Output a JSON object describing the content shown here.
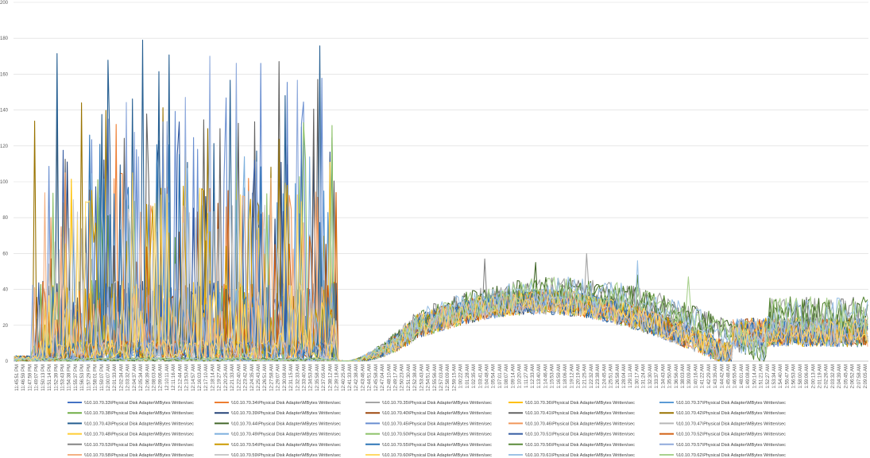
{
  "chart_data": {
    "type": "line",
    "title": "",
    "xlabel": "",
    "ylabel": "",
    "ylim": [
      0,
      200
    ],
    "yticks": [
      0,
      20,
      40,
      60,
      80,
      100,
      120,
      140,
      160,
      180,
      200
    ],
    "grid": "horizontal",
    "legend_position": "bottom",
    "x_tick_labels": [
      "11:45:51 PM",
      "11:46:59 PM",
      "11:47:59 PM",
      "11:49:07 PM",
      "11:50:13 PM",
      "11:51:14 PM",
      "11:52:39 PM",
      "11:53:43 PM",
      "11:54:38 PM",
      "11:55:37 PM",
      "11:56:53 PM",
      "11:57:29 PM",
      "11:58:01 PM",
      "11:59:07 PM",
      "12:00:07 AM",
      "12:01:33 AM",
      "12:02:34 AM",
      "12:03:32 AM",
      "12:04:37 AM",
      "12:05:34 AM",
      "12:06:39 AM",
      "12:08:03 AM",
      "12:09:06 AM",
      "12:10:11 AM",
      "12:11:16 AM",
      "12:12:44 AM",
      "12:13:53 AM",
      "12:14:57 AM",
      "12:16:03 AM",
      "12:17:10 AM",
      "12:18:14 AM",
      "12:19:27 AM",
      "12:20:25 AM",
      "12:21:33 AM",
      "12:22:40 AM",
      "12:23:42 AM",
      "12:24:35 AM",
      "12:25:43 AM",
      "12:26:51 AM",
      "12:27:58 AM",
      "12:29:07 AM",
      "12:30:08 AM",
      "12:31:15 AM",
      "12:32:33 AM",
      "12:33:40 AM",
      "12:34:53 AM",
      "12:35:58 AM",
      "12:37:05 AM",
      "12:38:12 AM",
      "12:39:18 AM",
      "12:40:25 AM",
      "12:41:33 AM",
      "12:42:38 AM",
      "12:43:46 AM",
      "12:44:51 AM",
      "12:45:58 AM",
      "12:47:04 AM",
      "12:48:10 AM",
      "12:49:17 AM",
      "12:50:23 AM",
      "12:51:30 AM",
      "12:52:38 AM",
      "12:53:43 AM",
      "12:54:51 AM",
      "12:55:56 AM",
      "12:57:03 AM",
      "12:58:09 AM",
      "12:59:15 AM",
      "1:00:22 AM",
      "1:01:28 AM",
      "1:02:35 AM",
      "1:03:41 AM",
      "1:04:48 AM",
      "1:05:54 AM",
      "1:07:01 AM",
      "1:08:07 AM",
      "1:09:14 AM",
      "1:10:20 AM",
      "1:11:27 AM",
      "1:12:33 AM",
      "1:13:40 AM",
      "1:14:46 AM",
      "1:15:53 AM",
      "1:16:59 AM",
      "1:18:06 AM",
      "1:19:12 AM",
      "1:20:19 AM",
      "1:21:25 AM",
      "1:22:32 AM",
      "1:23:38 AM",
      "1:24:45 AM",
      "1:25:51 AM",
      "1:26:58 AM",
      "1:28:04 AM",
      "1:29:11 AM",
      "1:30:17 AM",
      "1:31:24 AM",
      "1:32:30 AM",
      "1:33:37 AM",
      "1:34:43 AM",
      "1:35:50 AM",
      "1:36:56 AM",
      "1:38:03 AM",
      "1:39:09 AM",
      "1:40:16 AM",
      "1:41:22 AM",
      "1:42:29 AM",
      "1:43:35 AM",
      "1:44:42 AM",
      "1:45:48 AM",
      "1:46:55 AM",
      "1:48:01 AM",
      "1:49:08 AM",
      "1:50:14 AM",
      "1:51:21 AM",
      "1:52:27 AM",
      "1:53:34 AM",
      "1:54:40 AM",
      "1:55:47 AM",
      "1:56:53 AM",
      "1:58:00 AM",
      "1:59:06 AM",
      "2:00:13 AM",
      "2:01:19 AM",
      "2:02:26 AM",
      "2:03:32 AM",
      "2:04:39 AM",
      "2:05:45 AM",
      "2:06:52 AM",
      "2:07:58 AM",
      "2:09:05 AM"
    ],
    "series": [
      {
        "name": "\\\\10.10.70.33\\Physical Disk Adapter\\MBytes Written/sec",
        "color": "#4472c4",
        "peak": 42,
        "profile": "early_low"
      },
      {
        "name": "\\\\10.10.70.34\\Physical Disk Adapter\\MBytes Written/sec",
        "color": "#ed7d31",
        "peak": 132,
        "profile": "early_high"
      },
      {
        "name": "\\\\10.10.70.35\\Physical Disk Adapter\\MBytes Written/sec",
        "color": "#a5a5a5",
        "peak": 60,
        "profile": "late"
      },
      {
        "name": "\\\\10.10.70.36\\Physical Disk Adapter\\MBytes Written/sec",
        "color": "#ffc000",
        "peak": 103,
        "profile": "early_high"
      },
      {
        "name": "\\\\10.10.70.37\\Physical Disk Adapter\\MBytes Written/sec",
        "color": "#5b9bd5",
        "peak": 99,
        "profile": "early_high"
      },
      {
        "name": "\\\\10.10.70.38\\Physical Disk Adapter\\MBytes Written/sec",
        "color": "#70ad47",
        "peak": 91,
        "profile": "early_high"
      },
      {
        "name": "\\\\10.10.70.39\\Physical Disk Adapter\\MBytes Written/sec",
        "color": "#264478",
        "peak": 123,
        "profile": "early_high"
      },
      {
        "name": "\\\\10.10.70.40\\Physical Disk Adapter\\MBytes Written/sec",
        "color": "#9e480e",
        "peak": 88,
        "profile": "early_high"
      },
      {
        "name": "\\\\10.10.70.41\\Physical Disk Adapter\\MBytes Written/sec",
        "color": "#636363",
        "peak": 167,
        "profile": "early_high"
      },
      {
        "name": "\\\\10.10.70.42\\Physical Disk Adapter\\MBytes Written/sec",
        "color": "#997300",
        "peak": 144,
        "profile": "early_high"
      },
      {
        "name": "\\\\10.10.70.43\\Physical Disk Adapter\\MBytes Written/sec",
        "color": "#255e91",
        "peak": 179,
        "profile": "early_high"
      },
      {
        "name": "\\\\10.10.70.44\\Physical Disk Adapter\\MBytes Written/sec",
        "color": "#43682b",
        "peak": 55,
        "profile": "late"
      },
      {
        "name": "\\\\10.10.70.45\\Physical Disk Adapter\\MBytes Written/sec",
        "color": "#698ed0",
        "peak": 166,
        "profile": "early_high"
      },
      {
        "name": "\\\\10.10.70.46\\Physical Disk Adapter\\MBytes Written/sec",
        "color": "#f1975a",
        "peak": 105,
        "profile": "early_high"
      },
      {
        "name": "\\\\10.10.70.47\\Physical Disk Adapter\\MBytes Written/sec",
        "color": "#b7b7b7",
        "peak": 90,
        "profile": "early_high"
      },
      {
        "name": "\\\\10.10.70.48\\Physical Disk Adapter\\MBytes Written/sec",
        "color": "#ffcd33",
        "peak": 117,
        "profile": "early_high"
      },
      {
        "name": "\\\\10.10.70.49\\Physical Disk Adapter\\MBytes Written/sec",
        "color": "#7cafdd",
        "peak": 114,
        "profile": "early_high"
      },
      {
        "name": "\\\\10.10.70.50\\Physical Disk Adapter\\MBytes Written/sec",
        "color": "#8cc168",
        "peak": 133,
        "profile": "early_high"
      },
      {
        "name": "\\\\10.10.70.51\\Physical Disk Adapter\\MBytes Written/sec",
        "color": "#335aa1",
        "peak": 135,
        "profile": "early_high"
      },
      {
        "name": "\\\\10.10.70.52\\Physical Disk Adapter\\MBytes Written/sec",
        "color": "#d26012",
        "peak": 97,
        "profile": "early_high"
      },
      {
        "name": "\\\\10.10.70.53\\Physical Disk Adapter\\MBytes Written/sec",
        "color": "#848484",
        "peak": 57,
        "profile": "late"
      },
      {
        "name": "\\\\10.10.70.54\\Physical Disk Adapter\\MBytes Written/sec",
        "color": "#cc9a00",
        "peak": 98,
        "profile": "early_high"
      },
      {
        "name": "\\\\10.10.70.55\\Physical Disk Adapter\\MBytes Written/sec",
        "color": "#2e75b6",
        "peak": 126,
        "profile": "early_high"
      },
      {
        "name": "\\\\10.10.70.56\\Physical Disk Adapter\\MBytes Written/sec",
        "color": "#5a8a39",
        "peak": 48,
        "profile": "late"
      },
      {
        "name": "\\\\10.10.70.57\\Physical Disk Adapter\\MBytes Written/sec",
        "color": "#8faadc",
        "peak": 170,
        "profile": "early_high"
      },
      {
        "name": "\\\\10.10.70.58\\Physical Disk Adapter\\MBytes Written/sec",
        "color": "#f4b183",
        "peak": 102,
        "profile": "early_high"
      },
      {
        "name": "\\\\10.10.70.59\\Physical Disk Adapter\\MBytes Written/sec",
        "color": "#c9c9c9",
        "peak": 90,
        "profile": "early_high"
      },
      {
        "name": "\\\\10.10.70.60\\Physical Disk Adapter\\MBytes Written/sec",
        "color": "#ffd966",
        "peak": 105,
        "profile": "early_high"
      },
      {
        "name": "\\\\10.10.70.61\\Physical Disk Adapter\\MBytes Written/sec",
        "color": "#9dc3e6",
        "peak": 56,
        "profile": "late"
      },
      {
        "name": "\\\\10.10.70.62\\Physical Disk Adapter\\MBytes Written/sec",
        "color": "#a9d18e",
        "peak": 47,
        "profile": "late"
      }
    ]
  }
}
